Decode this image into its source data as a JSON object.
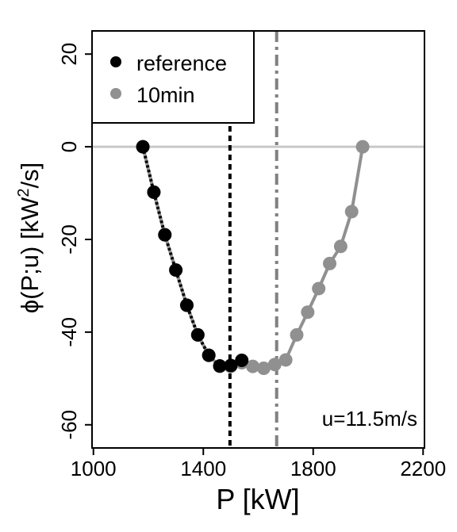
{
  "chart_data": {
    "type": "line",
    "xlabel": "P [kW]",
    "ylabel_prefix": "ϕ(P;u) [kW",
    "ylabel_sup": "2",
    "ylabel_suffix": "/s]",
    "xlim": [
      995,
      2205
    ],
    "ylim": [
      -65,
      25
    ],
    "x_ticks": [
      1000,
      1400,
      1800,
      2200
    ],
    "y_ticks": [
      -60,
      -40,
      -20,
      0,
      20
    ],
    "annotation": "u=11.5m/s",
    "legend": {
      "placement": "top-left"
    },
    "hline": {
      "y": 0,
      "color": "#c8c8c8"
    },
    "vlines": [
      {
        "x": 1497,
        "color": "#000000",
        "style": "short-dash"
      },
      {
        "x": 1667,
        "color": "#808080",
        "style": "dash-dot"
      }
    ],
    "series": [
      {
        "name": "10min",
        "color": "#909090",
        "x": [
          1180,
          1220,
          1260,
          1300,
          1340,
          1380,
          1420,
          1460,
          1500,
          1540,
          1580,
          1620,
          1660,
          1700,
          1740,
          1780,
          1820,
          1860,
          1900,
          1940,
          1980
        ],
        "y": [
          0,
          -9.8,
          -19,
          -26.6,
          -34.2,
          -40.6,
          -45,
          -47.4,
          -47.4,
          -46.6,
          -47.4,
          -47.8,
          -47,
          -46,
          -40.6,
          -35.7,
          -30.6,
          -25.2,
          -21.5,
          -14,
          0
        ]
      },
      {
        "name": "reference",
        "color": "#000000",
        "x": [
          1180,
          1220,
          1260,
          1300,
          1340,
          1380,
          1420,
          1460,
          1500,
          1540
        ],
        "y": [
          0,
          -9.8,
          -19,
          -26.6,
          -34.2,
          -40.6,
          -45,
          -47.3,
          -47.2,
          -46.1
        ]
      }
    ]
  }
}
